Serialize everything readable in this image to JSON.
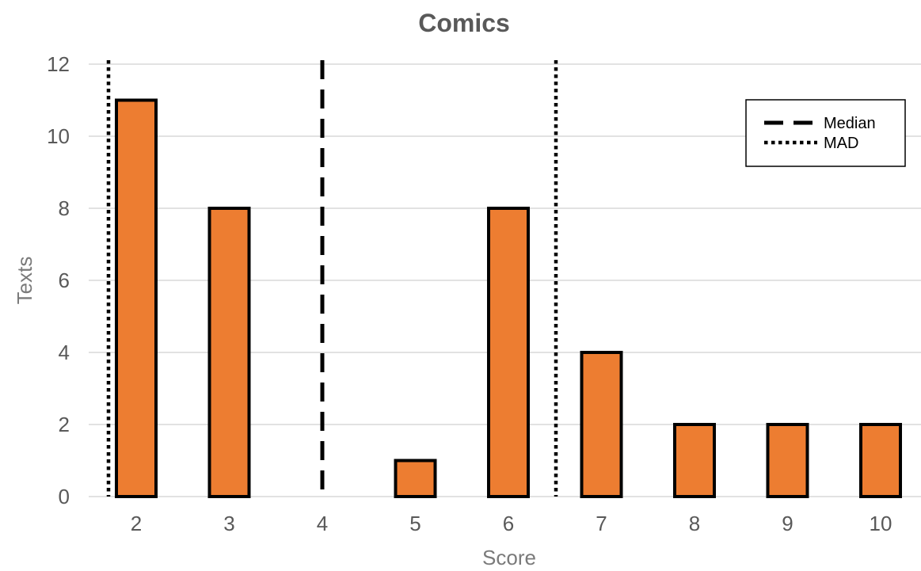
{
  "chart_data": {
    "type": "bar",
    "title": "Comics",
    "xlabel": "Score",
    "ylabel": "Texts",
    "categories": [
      "2",
      "3",
      "4",
      "5",
      "6",
      "7",
      "8",
      "9",
      "10"
    ],
    "values": [
      11,
      8,
      0,
      1,
      8,
      4,
      2,
      2,
      2
    ],
    "ylim": [
      0,
      12
    ],
    "yticks": [
      0,
      2,
      4,
      6,
      8,
      10,
      12
    ],
    "grid": true,
    "bar_color": "#ED7D31",
    "bar_edge_color": "#000000",
    "reference_lines": [
      {
        "name": "Median",
        "x": 4,
        "style": "dashed"
      },
      {
        "name": "MAD",
        "x": 2,
        "style": "dotted"
      },
      {
        "name": "MAD",
        "x": 6,
        "style": "dotted"
      }
    ],
    "legend": {
      "placement": "top-right",
      "entries": [
        {
          "label": "Median",
          "style": "dashed"
        },
        {
          "label": "MAD",
          "style": "dotted"
        }
      ]
    }
  }
}
